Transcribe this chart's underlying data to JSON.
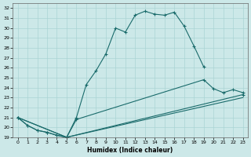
{
  "xlabel": "Humidex (Indice chaleur)",
  "bg_color": "#cce8e8",
  "grid_color": "#aad4d4",
  "line_color": "#1a6b6b",
  "xlim": [
    -0.5,
    23.5
  ],
  "ylim": [
    19,
    32.5
  ],
  "xticks": [
    0,
    1,
    2,
    3,
    4,
    5,
    6,
    7,
    8,
    9,
    10,
    11,
    12,
    13,
    14,
    15,
    16,
    17,
    18,
    19,
    20,
    21,
    22,
    23
  ],
  "yticks": [
    19,
    20,
    21,
    22,
    23,
    24,
    25,
    26,
    27,
    28,
    29,
    30,
    31,
    32
  ],
  "curve1_x": [
    0,
    1,
    2,
    3,
    4,
    5,
    6,
    7,
    8,
    9,
    10,
    11,
    12,
    13,
    14,
    15,
    16,
    17,
    18,
    19
  ],
  "curve1_y": [
    21.0,
    20.2,
    19.7,
    19.5,
    19.2,
    19.0,
    21.0,
    24.3,
    25.7,
    27.4,
    30.0,
    29.6,
    31.3,
    31.7,
    31.4,
    31.3,
    31.6,
    30.2,
    28.2,
    26.1
  ],
  "curve2_x": [
    0,
    1,
    2,
    3,
    4,
    5,
    6,
    19,
    20,
    21,
    22,
    23
  ],
  "curve2_y": [
    21.0,
    20.2,
    19.7,
    19.5,
    19.2,
    19.0,
    20.8,
    24.8,
    23.9,
    23.5,
    23.8,
    23.5
  ],
  "curve3_x": [
    0,
    5,
    23
  ],
  "curve3_y": [
    21.0,
    19.0,
    23.3
  ],
  "curve4_x": [
    0,
    5,
    23
  ],
  "curve4_y": [
    21.0,
    19.0,
    23.0
  ]
}
